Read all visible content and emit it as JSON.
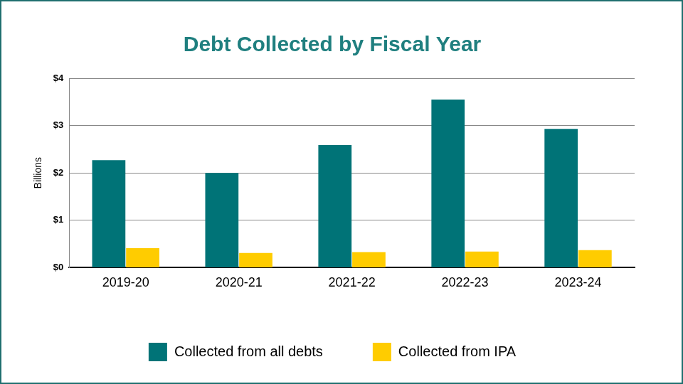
{
  "chart_data": {
    "type": "bar",
    "title": "Debt Collected by Fiscal Year",
    "y_label": "Billions",
    "categories": [
      "2019-20",
      "2020-21",
      "2021-22",
      "2022-23",
      "2023-24"
    ],
    "series": [
      {
        "name": "Collected from all debts",
        "color": "#007377",
        "values": [
          2.27,
          2.0,
          2.59,
          3.55,
          2.93
        ]
      },
      {
        "name": "Collected from IPA",
        "color": "#ffcc00",
        "values": [
          0.41,
          0.31,
          0.33,
          0.34,
          0.37
        ]
      }
    ],
    "ylim": [
      0,
      4
    ],
    "yticks": [
      {
        "value": 0,
        "label": "$0"
      },
      {
        "value": 1,
        "label": "$1"
      },
      {
        "value": 2,
        "label": "$2"
      },
      {
        "value": 3,
        "label": "$3"
      },
      {
        "value": 4,
        "label": "$4"
      }
    ],
    "grid": true,
    "legend": "bottom"
  }
}
